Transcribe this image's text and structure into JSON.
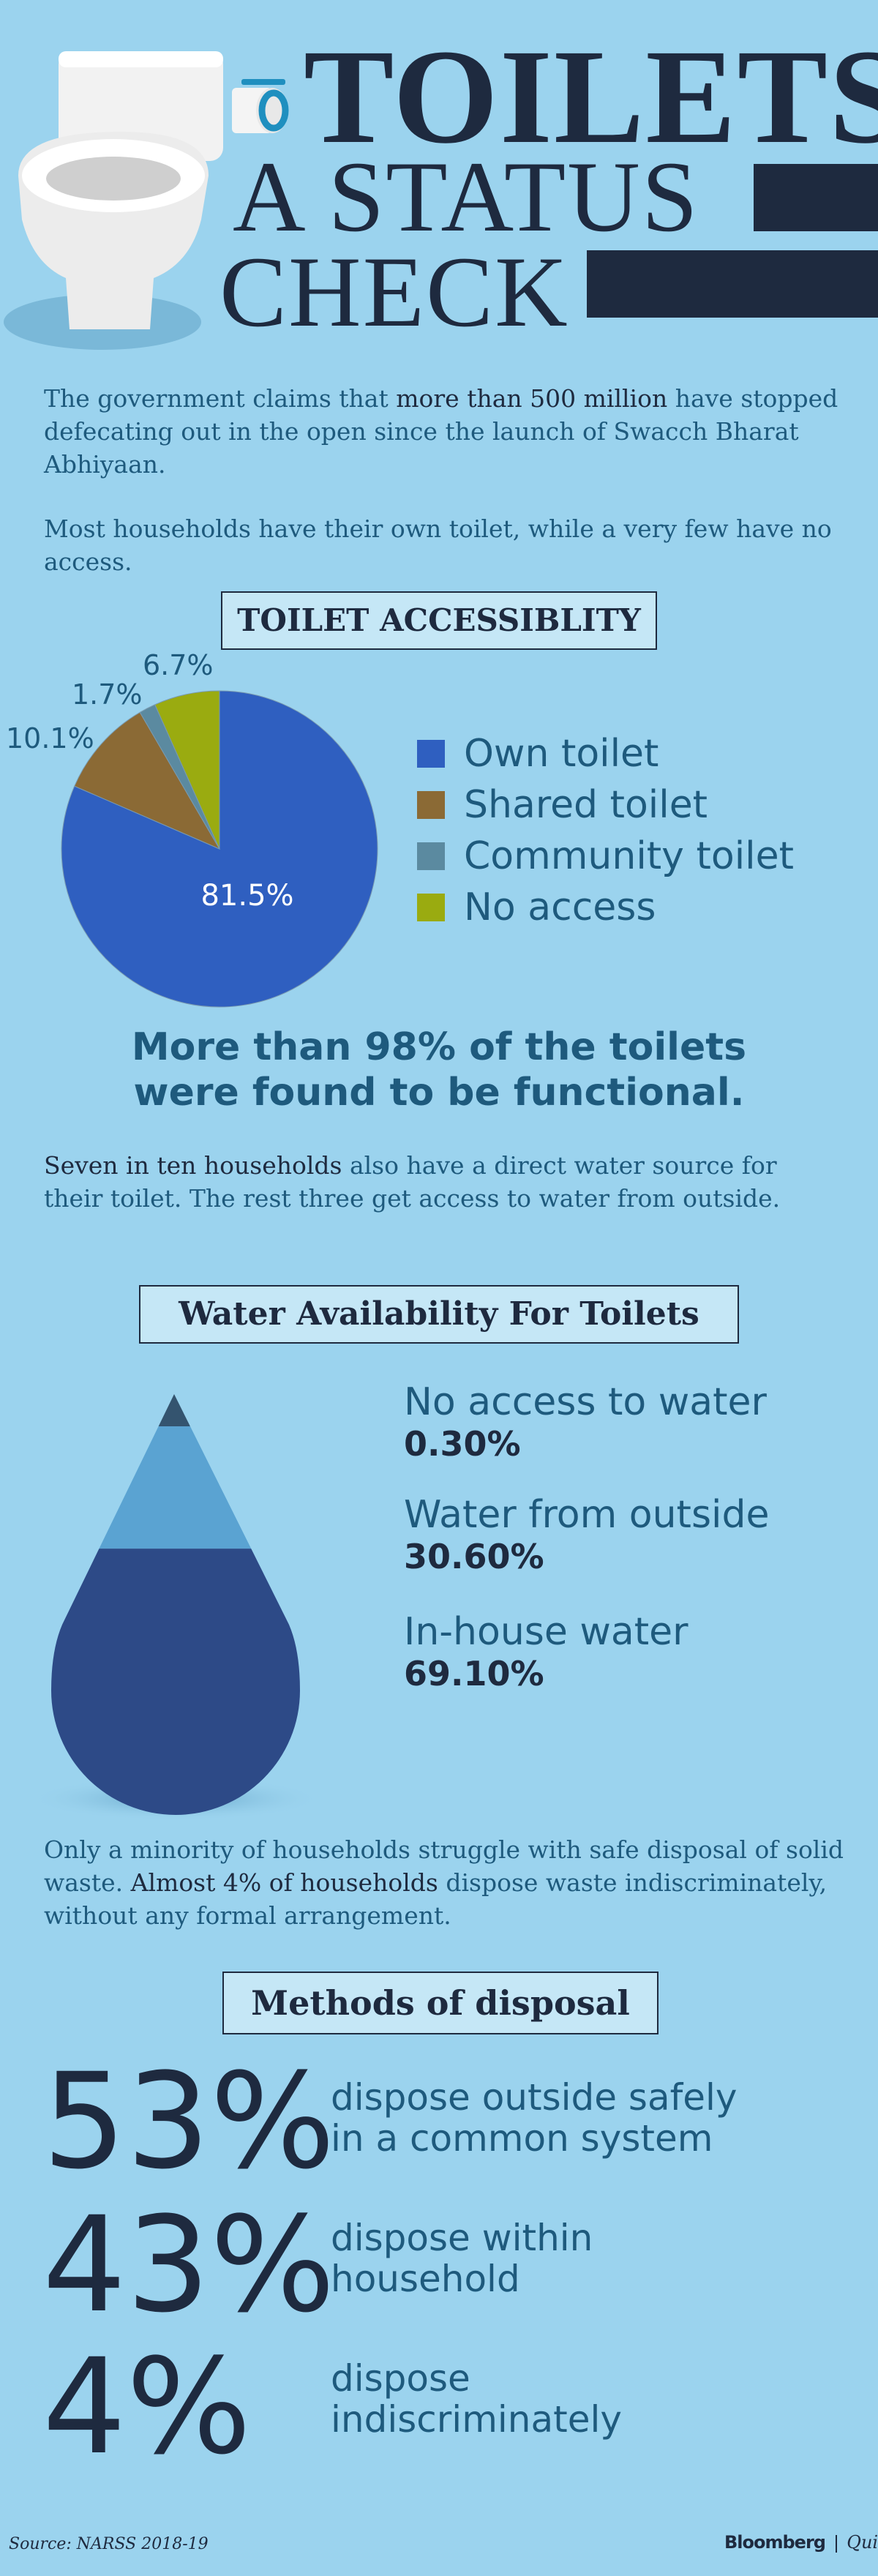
{
  "header": {
    "title_line1": "TOILETS",
    "title_line2": "A STATUS",
    "title_line3": "CHECK"
  },
  "intro": {
    "p1_pre": "The government claims that ",
    "p1_strong": "more than 500 million",
    "p1_post": " have stopped defecating out in the open since the launch of Swacch Bharat Abhiyaan.",
    "p2": "Most households have their own toilet, while a very few have no access."
  },
  "section1": {
    "title": "TOILET ACCESSIBLITY"
  },
  "functional_note": {
    "line1": "More than 98% of the toilets",
    "line2": "were found to be functional."
  },
  "water_note": {
    "strong": "Seven in ten households",
    "rest": " also have a direct water source for their toilet. The rest three get access to water from outside."
  },
  "section2": {
    "title": "Water Availability For Toilets"
  },
  "waste_note": {
    "p_pre": "Only a minority of households struggle with safe disposal of solid waste. ",
    "p_strong": "Almost 4% of households",
    "p_post": " dispose waste indiscriminately, without any formal arrangement."
  },
  "section3": {
    "title": "Methods of disposal"
  },
  "footer": {
    "source": "Source: NARSS 2018-19",
    "brand1": "Bloomberg",
    "brand2": "Quint"
  },
  "colors": {
    "own": "#2f5fc0",
    "shared": "#8b6a35",
    "community": "#5b8aa0",
    "none": "#9aab10",
    "drop_top": "#34546f",
    "drop_mid": "#5aa3d2",
    "drop_bottom": "#2d4a87"
  },
  "chart_data": [
    {
      "type": "pie",
      "title": "TOILET ACCESSIBLITY",
      "categories": [
        "Own toilet",
        "Shared toilet",
        "Community toilet",
        "No access"
      ],
      "values": [
        81.5,
        10.1,
        1.7,
        6.7
      ],
      "labels": [
        "81.5%",
        "10.1%",
        "1.7%",
        "6.7%"
      ],
      "legend": "right"
    },
    {
      "type": "area",
      "title": "Water Availability For Toilets",
      "categories": [
        "No access to water",
        "Water from outside",
        "In-house water"
      ],
      "values": [
        0.3,
        30.6,
        69.1
      ],
      "labels": [
        "0.30%",
        "30.60%",
        "69.10%"
      ]
    },
    {
      "type": "table",
      "title": "Methods of disposal",
      "rows": [
        {
          "value": "53%",
          "desc1": "dispose outside safely",
          "desc2": "in a common system"
        },
        {
          "value": "43%",
          "desc1": "dispose within",
          "desc2": "household"
        },
        {
          "value": "4%",
          "desc1": "dispose",
          "desc2": "indiscriminately"
        }
      ]
    }
  ]
}
